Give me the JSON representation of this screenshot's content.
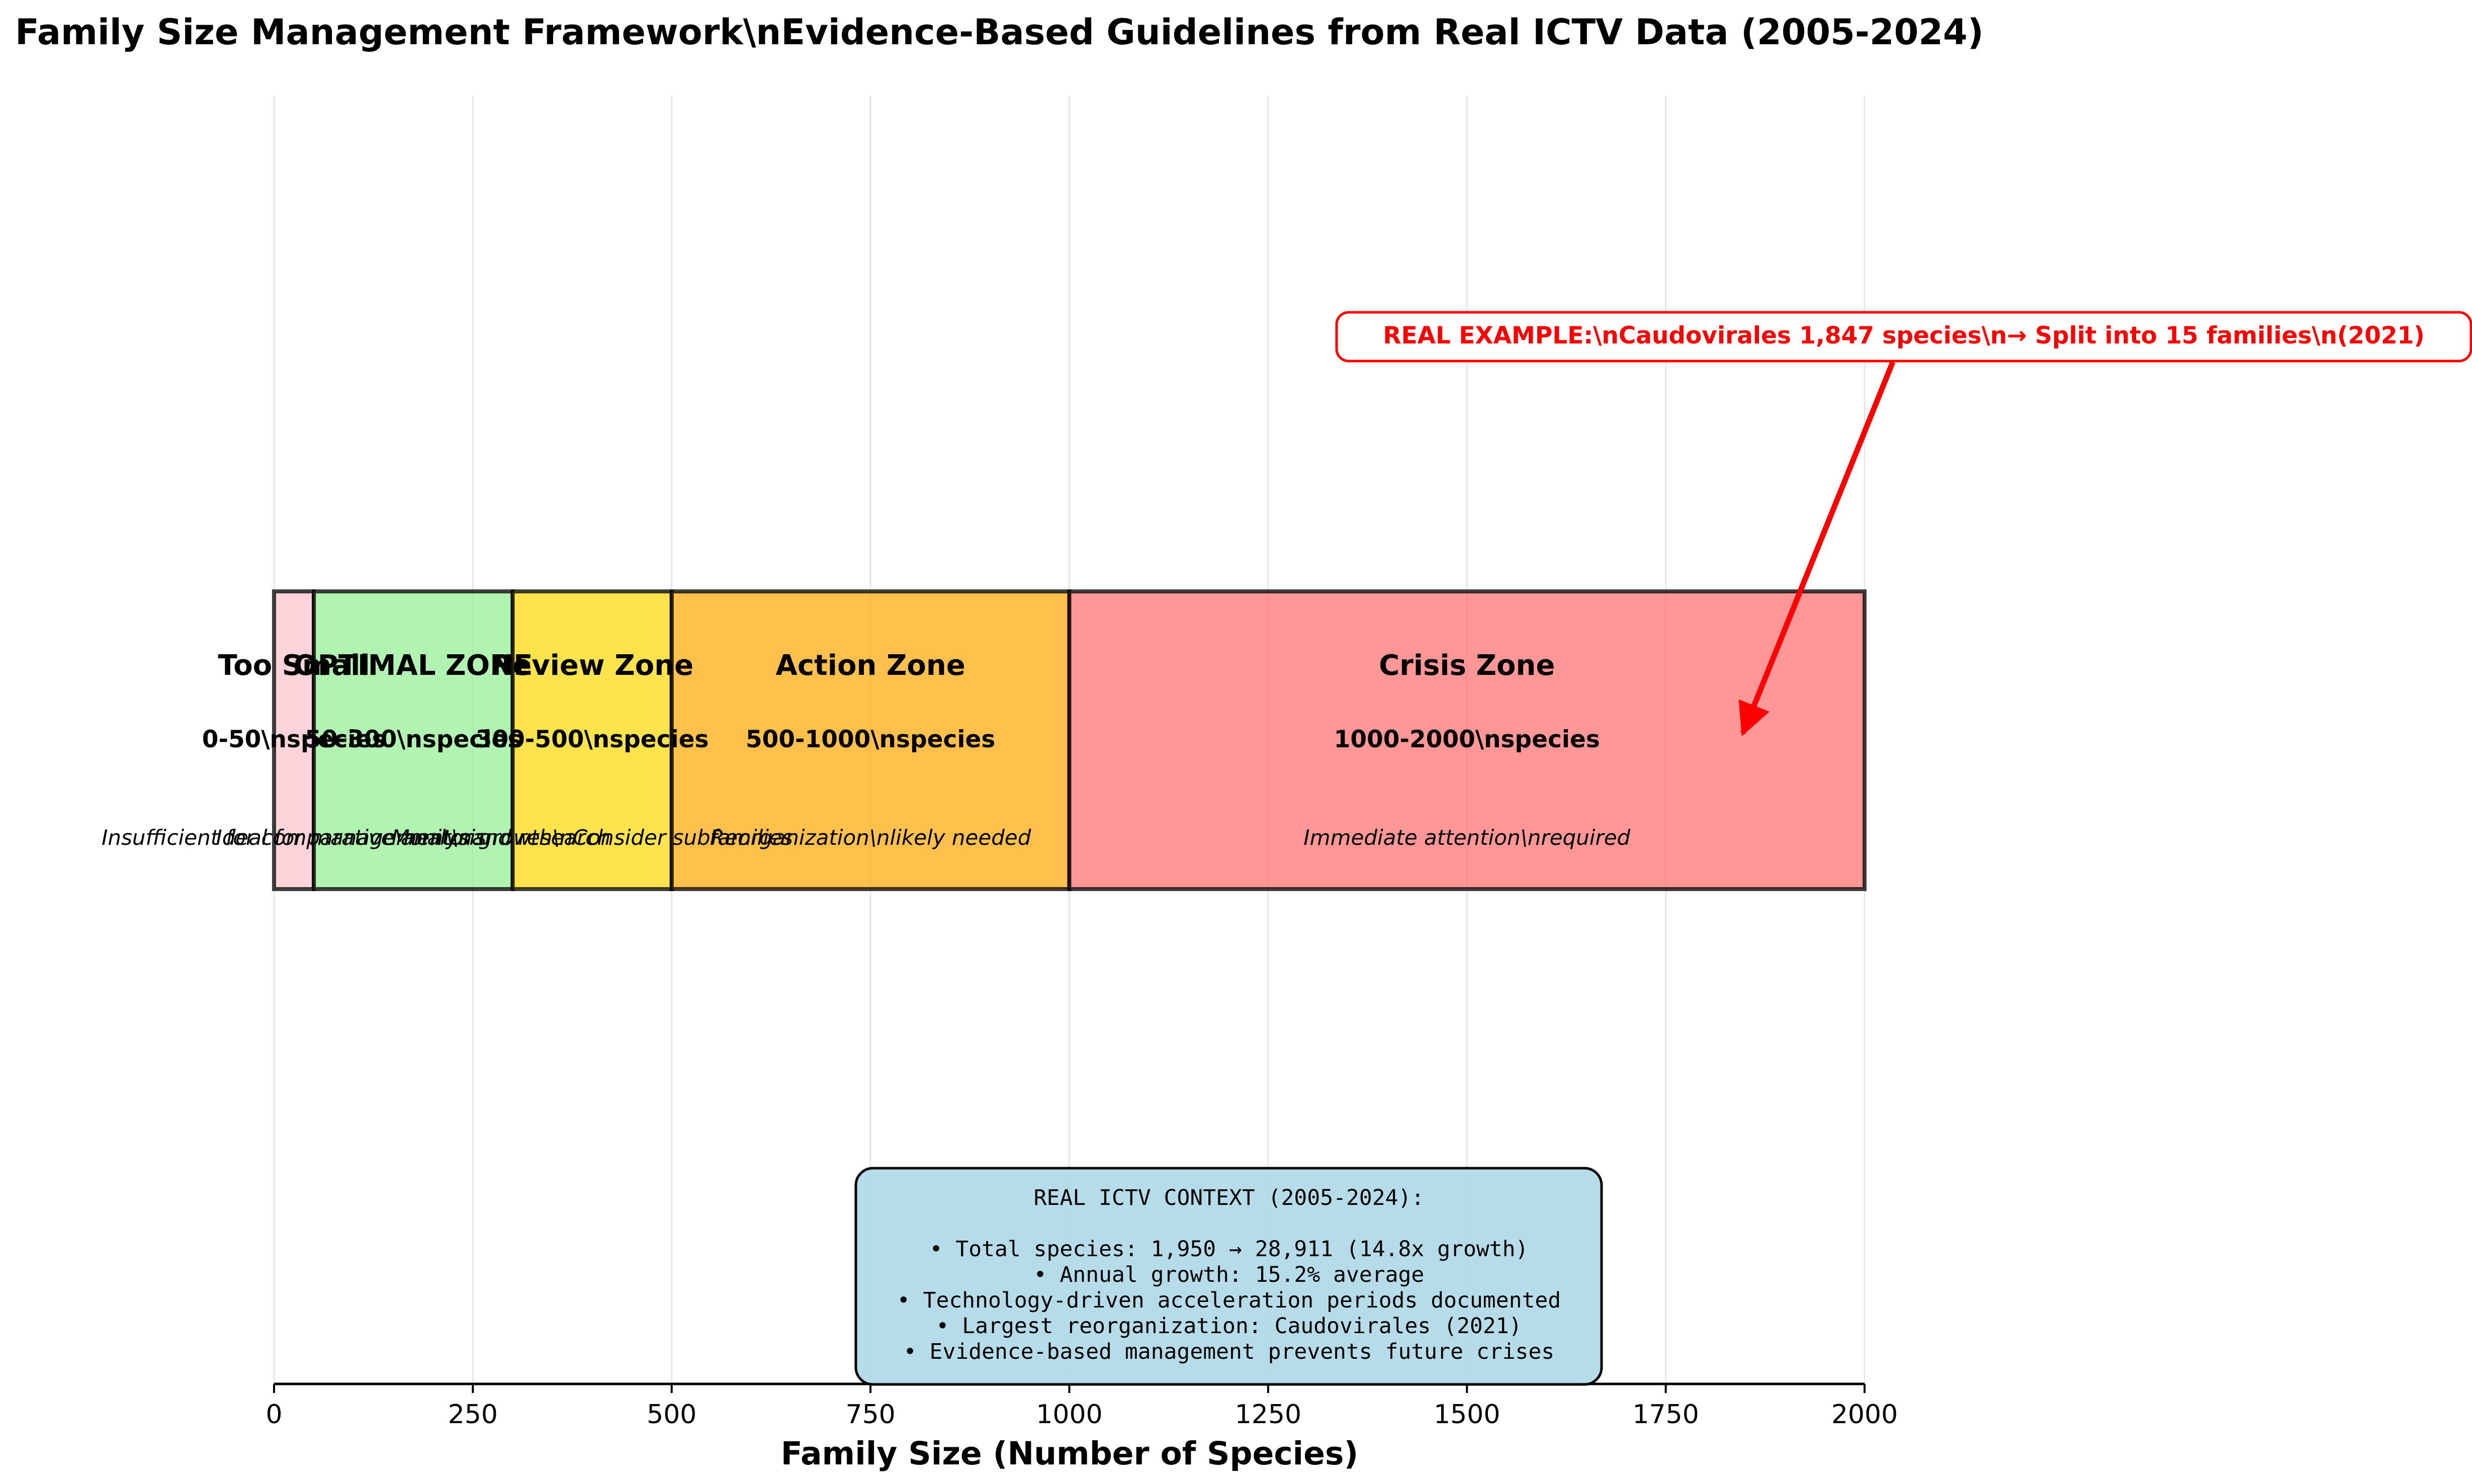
{
  "chart_data": {
    "type": "bar",
    "orientation": "horizontal-stacked-zones",
    "title": "Family Size Management Framework\\nEvidence-Based Guidelines from Real ICTV Data (2005-2024)",
    "xlabel": "Family Size (Number of Species)",
    "xlim": [
      0,
      2000
    ],
    "xticks": [
      0,
      250,
      500,
      750,
      1000,
      1250,
      1500,
      1750,
      2000
    ],
    "grid": "vertical",
    "zones": [
      {
        "name": "Too Small",
        "start": 0,
        "end": 50,
        "range_label": "0-50\\nspecies",
        "description": "Insufficient for comparative analysis",
        "color": "#ffc0cb"
      },
      {
        "name": "OPTIMAL ZONE",
        "start": 50,
        "end": 300,
        "range_label": "50-300\\nspecies",
        "description": "Ideal for management\\nand research",
        "color": "#90ee90"
      },
      {
        "name": "Review Zone",
        "start": 300,
        "end": 500,
        "range_label": "300-500\\nspecies",
        "description": "Monitor growth\\nConsider subfamilies",
        "color": "#ffd700"
      },
      {
        "name": "Action Zone",
        "start": 500,
        "end": 1000,
        "range_label": "500-1000\\nspecies",
        "description": "Reorganization\\nlikely needed",
        "color": "#ffa500"
      },
      {
        "name": "Crisis Zone",
        "start": 1000,
        "end": 2000,
        "range_label": "1000-2000\\nspecies",
        "description": "Immediate attention\\nrequired",
        "color": "#ff6b6b"
      }
    ],
    "annotation": {
      "text": "REAL EXAMPLE:\\nCaudovirales 1,847 species\\n→ Split into 15 families\\n(2021)",
      "target_x": 1847,
      "color": "#ff0000"
    },
    "context_box": {
      "title": "REAL ICTV CONTEXT (2005-2024):",
      "lines": [
        "• Total species: 1,950 → 28,911 (14.8x growth)",
        "• Annual growth: 15.2% average",
        "• Technology-driven acceleration periods documented",
        "• Largest reorganization: Caudovirales (2021)",
        "• Evidence-based management prevents future crises"
      ],
      "color": "#add8e6"
    }
  }
}
